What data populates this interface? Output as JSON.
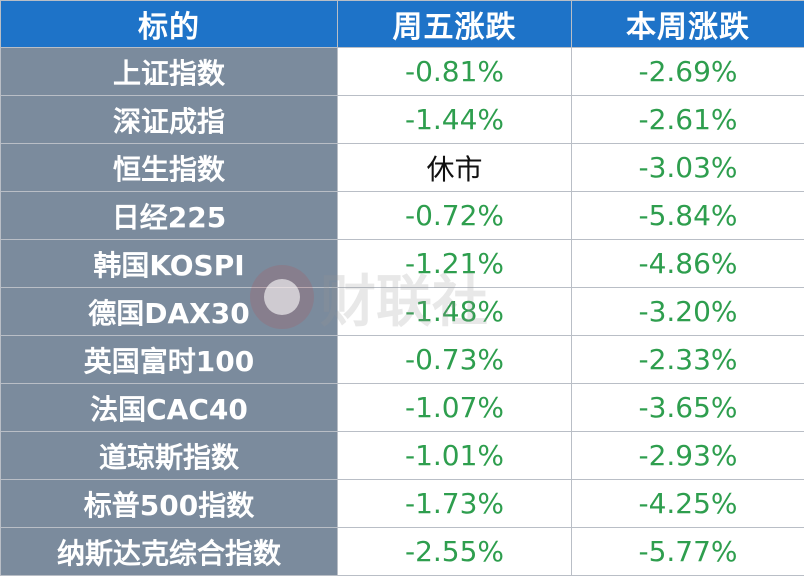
{
  "header": {
    "col_name": "标的",
    "col_friday": "周五涨跌",
    "col_week": "本周涨跌"
  },
  "rows": [
    {
      "name": "上证指数",
      "friday": "-0.81%",
      "week": "-2.69%"
    },
    {
      "name": "深证成指",
      "friday": "-1.44%",
      "week": "-2.61%"
    },
    {
      "name": "恒生指数",
      "friday": "休市",
      "week": "-3.03%"
    },
    {
      "name": "日经225",
      "friday": "-0.72%",
      "week": "-5.84%"
    },
    {
      "name": "韩国KOSPI",
      "friday": "-1.21%",
      "week": "-4.86%"
    },
    {
      "name": "德国DAX30",
      "friday": "-1.48%",
      "week": "-3.20%"
    },
    {
      "name": "英国富时100",
      "friday": "-0.73%",
      "week": "-2.33%"
    },
    {
      "name": "法国CAC40",
      "friday": "-1.07%",
      "week": "-3.65%"
    },
    {
      "name": "道琼斯指数",
      "friday": "-1.01%",
      "week": "-2.93%"
    },
    {
      "name": "标普500指数",
      "friday": "-1.73%",
      "week": "-4.25%"
    },
    {
      "name": "纳斯达克综合指数",
      "friday": "-2.55%",
      "week": "-5.77%"
    }
  ],
  "watermark": {
    "text": "财联社",
    "icon": "cls-logo-icon"
  },
  "colors": {
    "header_bg": "#1e73c8",
    "name_bg": "#7b8b9d",
    "negative_text": "#2e9e4e",
    "closed_text": "#111111"
  }
}
